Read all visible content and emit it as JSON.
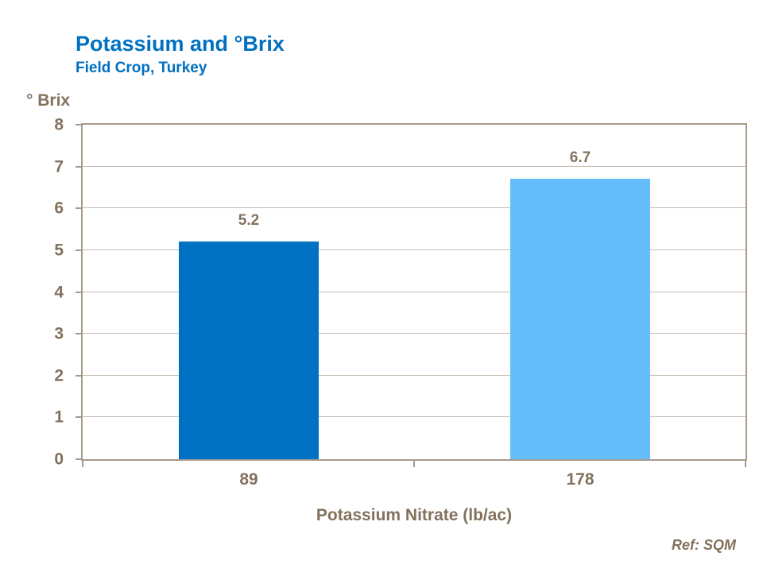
{
  "header": {
    "title": "Potassium and °Brix",
    "subtitle": "Field Crop, Turkey"
  },
  "footer": {
    "ref": "Ref: SQM"
  },
  "colors": {
    "title_blue": "#0070c0",
    "text_brown": "#82715c",
    "axis_line": "#a69a8b",
    "gridline": "#c6bcb0",
    "background": "#ffffff",
    "bar_dark_blue": "#0071c2",
    "bar_light_blue": "#66bdfc"
  },
  "chart_data": {
    "type": "bar",
    "title": "Potassium and °Brix",
    "subtitle": "Field Crop, Turkey",
    "categories": [
      "89",
      "178"
    ],
    "values": [
      5.2,
      6.7
    ],
    "data_labels": [
      "5.2",
      "6.7"
    ],
    "bar_colors": [
      "#0071c2",
      "#66bdfc"
    ],
    "xlabel": "Potassium Nitrate (lb/ac)",
    "ylabel": "° Brix",
    "ylim": [
      0,
      8
    ],
    "yticks": [
      0,
      1,
      2,
      3,
      4,
      5,
      6,
      7,
      8
    ],
    "grid": true,
    "legend": false,
    "annotation": "Ref: SQM"
  }
}
